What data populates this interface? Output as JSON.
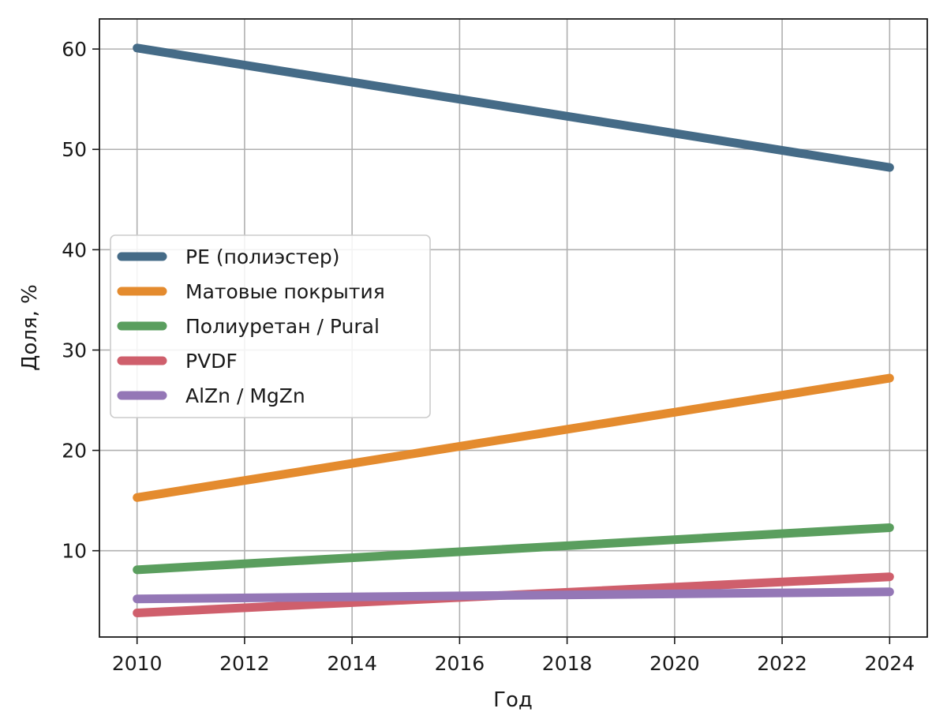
{
  "chart_data": {
    "type": "line",
    "title": "",
    "xlabel": "Год",
    "ylabel": "Доля, %",
    "x": [
      2010,
      2024
    ],
    "xlim": [
      2009.3,
      2024.7
    ],
    "ylim": [
      1.4,
      63.0
    ],
    "xticks": [
      2010,
      2012,
      2014,
      2016,
      2018,
      2020,
      2022,
      2024
    ],
    "yticks": [
      10,
      20,
      30,
      40,
      50,
      60
    ],
    "grid": true,
    "legend_position": "center-left",
    "series": [
      {
        "name": "PE (полиэстер)",
        "color": "#456b87",
        "values": [
          60.1,
          48.2
        ]
      },
      {
        "name": "Матовые покрытия",
        "color": "#e48b2e",
        "values": [
          15.3,
          27.2
        ]
      },
      {
        "name": "Полиуретан / Pural",
        "color": "#5a9e5e",
        "values": [
          8.1,
          12.3
        ]
      },
      {
        "name": "PVDF",
        "color": "#cf5f6c",
        "values": [
          3.8,
          7.4
        ]
      },
      {
        "name": "AlZn / MgZn",
        "color": "#9477b6",
        "values": [
          5.2,
          5.9
        ]
      }
    ]
  }
}
